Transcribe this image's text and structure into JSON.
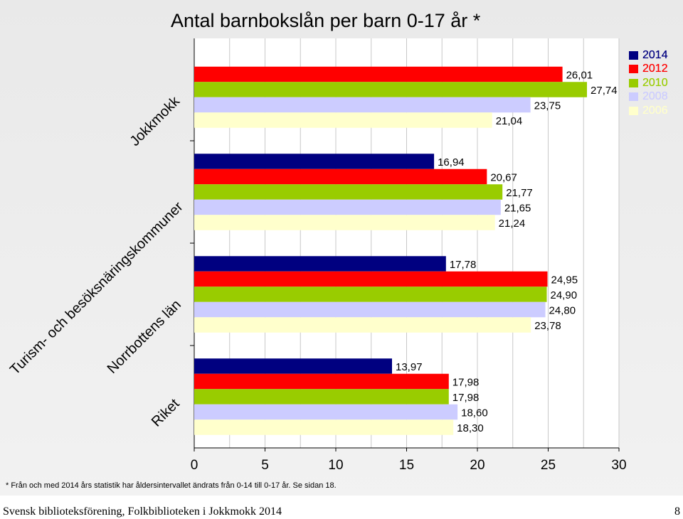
{
  "chart_data": {
    "type": "bar",
    "orientation": "horizontal",
    "title": "Antal barnbokslån per barn 0-17 år *",
    "categories": [
      "Jokkmokk",
      "Turism- och besöksnäringskommuner",
      "Norrbottens län",
      "Riket"
    ],
    "series": [
      {
        "name": "2014",
        "color": "#000080",
        "values": [
          null,
          16.94,
          17.78,
          13.97
        ],
        "labels": [
          "",
          "16,94",
          "17,78",
          "13,97"
        ]
      },
      {
        "name": "2012",
        "color": "#ff0000",
        "values": [
          26.01,
          20.67,
          24.95,
          17.98
        ],
        "labels": [
          "26,01",
          "20,67",
          "24,95",
          "17,98"
        ]
      },
      {
        "name": "2010",
        "color": "#99cc00",
        "values": [
          27.74,
          21.77,
          24.9,
          17.98
        ],
        "labels": [
          "27,74",
          "21,77",
          "24,90",
          "17,98"
        ]
      },
      {
        "name": "2008",
        "color": "#ccccff",
        "values": [
          23.75,
          21.65,
          24.8,
          18.6
        ],
        "labels": [
          "23,75",
          "21,65",
          "24,80",
          "18,60"
        ]
      },
      {
        "name": "2006",
        "color": "#ffffcc",
        "values": [
          21.04,
          21.24,
          23.78,
          18.3
        ],
        "labels": [
          "21,04",
          "21,24",
          "23,78",
          "18,30"
        ]
      }
    ],
    "xlim": [
      0,
      30
    ],
    "xticks": [
      "0",
      "5",
      "10",
      "15",
      "20",
      "25",
      "30"
    ],
    "grid": true,
    "legend_position": "top-right"
  },
  "footnote": "* Från och med 2014 års statistik har åldersintervallet ändrats från 0-14 till 0-17 år. Se sidan 18.",
  "footer": {
    "text": "Svensk biblioteksförening, Folkbiblioteken i Jokkmokk 2014",
    "page": "8"
  }
}
